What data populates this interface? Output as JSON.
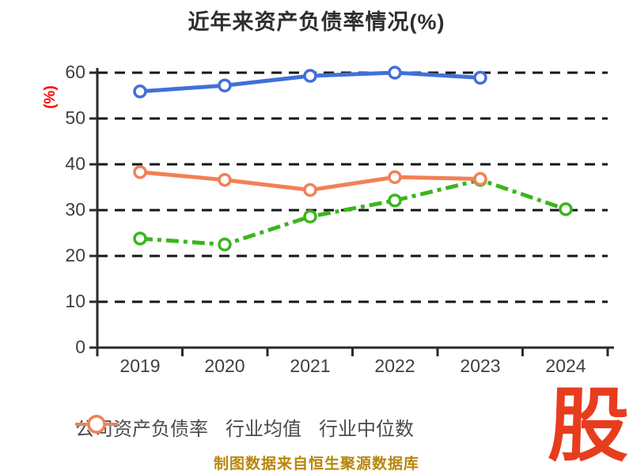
{
  "chart_data": {
    "type": "line",
    "title": "近年来资产负债率情况(%)",
    "ylabel": "(%)",
    "xlabel": "",
    "categories": [
      "2019",
      "2020",
      "2021",
      "2022",
      "2023",
      "2024"
    ],
    "series": [
      {
        "name": "公司资产负债率",
        "color": "#3cb51e",
        "line_style": "dash-dot",
        "values": [
          23.8,
          22.5,
          28.6,
          32.1,
          36.6,
          30.2
        ]
      },
      {
        "name": "行业均值",
        "color": "#4170d8",
        "line_style": "solid",
        "values": [
          55.9,
          57.2,
          59.3,
          60.0,
          58.9,
          null
        ]
      },
      {
        "name": "行业中位数",
        "color": "#f18155",
        "line_style": "solid",
        "values": [
          38.3,
          36.6,
          34.4,
          37.2,
          36.8,
          null
        ]
      }
    ],
    "ylim": [
      0,
      60
    ],
    "ytick_step": 10,
    "grid": "horizontal-dashed",
    "legend_position": "bottom",
    "marker": "circle-white-fill"
  },
  "colors": {
    "title_text": "#2e2e2e",
    "tick_text": "#3f3f3f",
    "legend_text": "#4a4a4a",
    "axis": "#2a2a2a",
    "gridline": "#161616",
    "ylabel_red": "#ff0000",
    "footer_amber": "#b8860b",
    "logo_red": "#e83c1e"
  },
  "footer": {
    "note": "制图数据来自恒生聚源数据库"
  },
  "logo": {
    "text": "股"
  }
}
